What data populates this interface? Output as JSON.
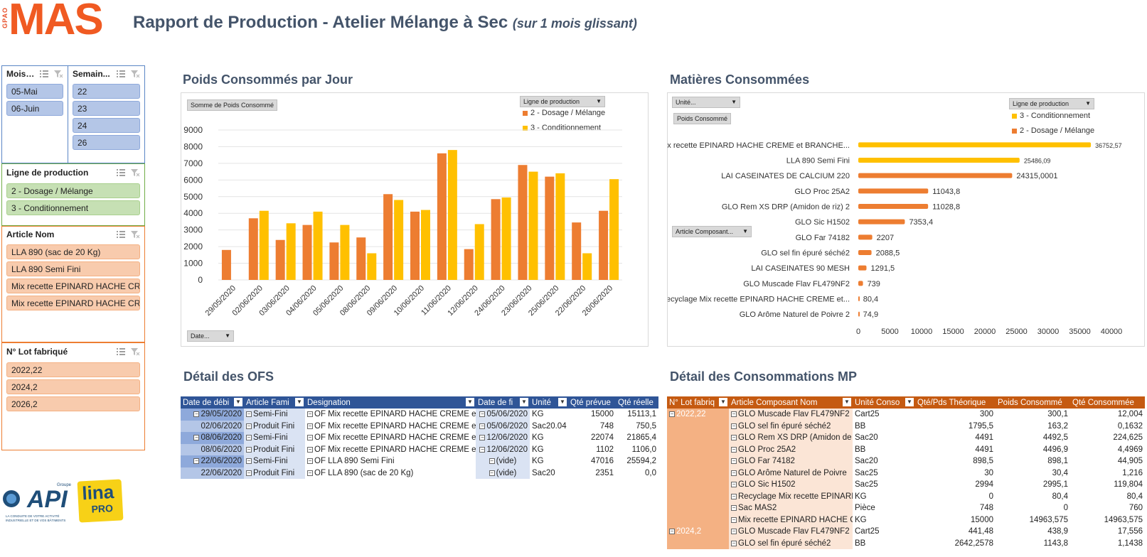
{
  "header": {
    "logo_small": "GPAO",
    "logo": "MAS",
    "title": "Rapport de Production - Atelier Mélange à Sec",
    "subtitle": "(sur 1 mois glissant)"
  },
  "slicers": {
    "mois": {
      "label": "Mois ...",
      "items": [
        "05-Mai",
        "06-Juin"
      ]
    },
    "semaine": {
      "label": "Semain...",
      "items": [
        "22",
        "23",
        "24",
        "26"
      ]
    },
    "ligne": {
      "label": "Ligne de production",
      "items": [
        "2 - Dosage / Mélange",
        "3 - Conditionnement"
      ]
    },
    "article": {
      "label": "Article Nom",
      "items": [
        "LLA 890 (sac de 20 Kg)",
        "LLA 890 Semi Fini",
        "Mix recette EPINARD HACHE CR...",
        "Mix recette EPINARD HACHE CR..."
      ]
    },
    "lot": {
      "label": "N° Lot fabriqué",
      "items": [
        "2022,22",
        "2024,2",
        "2026,2"
      ]
    }
  },
  "chart1": {
    "section_title": "Poids Consommés par Jour",
    "value_pill": "Somme de Poids Consommé",
    "legend_pill": "Ligne de production",
    "axis_pill": "Date...",
    "colors": {
      "s1": "#ed7d31",
      "s2": "#ffc000"
    }
  },
  "chart2": {
    "section_title": "Matières Consommées",
    "unit_pill": "Unité...",
    "value_pill": "Poids Consommé",
    "legend_pill": "Ligne de production",
    "axis_pill": "Article Composant...",
    "colors": {
      "s1": "#ffc000",
      "s2": "#ed7d31"
    }
  },
  "chart_data": [
    {
      "type": "bar",
      "categories": [
        "29/05/2020",
        "02/06/2020",
        "03/06/2020",
        "04/06/2020",
        "05/06/2020",
        "08/06/2020",
        "09/06/2020",
        "10/06/2020",
        "11/06/2020",
        "12/06/2020",
        "24/06/2020",
        "23/06/2020",
        "25/06/2020",
        "22/06/2020",
        "26/06/2020"
      ],
      "series": [
        {
          "name": "2 - Dosage / Mélange",
          "values": [
            1800,
            3700,
            2400,
            3300,
            2250,
            2550,
            5150,
            4100,
            7600,
            1850,
            4850,
            6900,
            6200,
            3450,
            4150
          ]
        },
        {
          "name": "3 - Conditionnement",
          "values": [
            0,
            4150,
            3400,
            4100,
            3300,
            1600,
            4800,
            4200,
            7800,
            3350,
            4950,
            6500,
            6400,
            1600,
            6050
          ]
        }
      ],
      "ylim": [
        0,
        9000
      ],
      "yticks": [
        0,
        1000,
        2000,
        3000,
        4000,
        5000,
        6000,
        7000,
        8000,
        9000
      ]
    },
    {
      "type": "bar",
      "orientation": "horizontal",
      "categories": [
        "Mix recette EPINARD HACHE CREME et BRANCHE...",
        "LLA 890 Semi Fini",
        "LAI CASEINATES DE CALCIUM 220",
        "GLO Proc 25A2",
        "GLO Rem XS DRP (Amidon de riz) 2",
        "GLO Sic H1502",
        "GLO Far 74182",
        "GLO sel fin épuré séché2",
        "LAI CASEINATES 90 MESH",
        "GLO Muscade Flav FL479NF2",
        "Recyclage Mix recette EPINARD HACHE CREME et...",
        "GLO Arôme Naturel de Poivre 2"
      ],
      "series": [
        {
          "name": "3 - Conditionnement",
          "values": [
            36752.57,
            25486.09,
            0,
            0,
            0,
            0,
            0,
            0,
            0,
            0,
            0,
            0
          ]
        },
        {
          "name": "2 - Dosage / Mélange",
          "values": [
            0,
            0,
            24315.0001,
            11043.8,
            11028.8,
            7353.4,
            2207,
            2088.5,
            1291.5,
            739,
            80.4,
            74.9
          ]
        }
      ],
      "labels": [
        "36752,57",
        "25486,09",
        "24315,0001",
        "11043,8",
        "11028,8",
        "7353,4",
        "2207",
        "2088,5",
        "1291,5",
        "739",
        "80,4",
        "74,9"
      ],
      "xlim": [
        0,
        40000
      ],
      "xticks": [
        0,
        5000,
        10000,
        15000,
        20000,
        25000,
        30000,
        35000,
        40000
      ]
    }
  ],
  "ofs": {
    "section_title": "Détail des OFS",
    "headers": [
      "Date de débi",
      "Article Fami",
      "Designation",
      "Date de fi",
      "Unité",
      "Qté prévue",
      "Qté réelle"
    ],
    "rows": [
      [
        "29/05/2020",
        "Semi-Fini",
        "OF Mix recette EPINARD HACHE CREME et B",
        "05/06/2020",
        "KG",
        "15000",
        "15113,1"
      ],
      [
        "02/06/2020",
        "Produit Fini",
        "OF Mix recette EPINARD HACHE CREME et B",
        "05/06/2020",
        "Sac20.04",
        "748",
        "750,5"
      ],
      [
        "08/06/2020",
        "Semi-Fini",
        "OF Mix recette EPINARD HACHE CREME et B",
        "12/06/2020",
        "KG",
        "22074",
        "21865,4"
      ],
      [
        "08/06/2020",
        "Produit Fini",
        "OF Mix recette EPINARD HACHE CREME et B",
        "12/06/2020",
        "KG",
        "1102",
        "1106,0"
      ],
      [
        "22/06/2020",
        "Semi-Fini",
        "OF LLA 890 Semi Fini",
        "(vide)",
        "KG",
        "47016",
        "25594,2"
      ],
      [
        "22/06/2020",
        "Produit Fini",
        "OF LLA 890 (sac de 20 Kg)",
        "(vide)",
        "Sac20",
        "2351",
        "0,0"
      ]
    ]
  },
  "mp": {
    "section_title": "Détail des Consommations MP",
    "headers": [
      "N° Lot fabriq",
      "Article Composant Nom",
      "Unité Conso",
      "Qté/Pds Théorique",
      "Poids Consommé",
      "Qté Consommée"
    ],
    "rows": [
      [
        "2022,22",
        "GLO Muscade Flav FL479NF2",
        "Cart25",
        "300",
        "300,1",
        "12,004"
      ],
      [
        "",
        "GLO sel fin épuré séché2",
        "BB",
        "1795,5",
        "163,2",
        "0,1632"
      ],
      [
        "",
        "GLO Rem XS DRP (Amidon de r",
        "Sac20",
        "4491",
        "4492,5",
        "224,625"
      ],
      [
        "",
        "GLO Proc 25A2",
        "BB",
        "4491",
        "4496,9",
        "4,4969"
      ],
      [
        "",
        "GLO Far 74182",
        "Sac20",
        "898,5",
        "898,1",
        "44,905"
      ],
      [
        "",
        "GLO Arôme Naturel de Poivre",
        "Sac25",
        "30",
        "30,4",
        "1,216"
      ],
      [
        "",
        "GLO Sic H1502",
        "Sac25",
        "2994",
        "2995,1",
        "119,804"
      ],
      [
        "",
        "Recyclage Mix recette EPINARI",
        "KG",
        "0",
        "80,4",
        "80,4"
      ],
      [
        "",
        "Sac MAS2",
        "Pièce",
        "748",
        "0",
        "760"
      ],
      [
        "",
        "Mix recette EPINARD HACHE CI",
        "KG",
        "15000",
        "14963,575",
        "14963,575"
      ],
      [
        "2024,2",
        "GLO Muscade Flav FL479NF2",
        "Cart25",
        "441,48",
        "438,9",
        "17,556"
      ],
      [
        "",
        "GLO sel fin épuré séché2",
        "BB",
        "2642,2578",
        "1143,8",
        "1,1438"
      ]
    ]
  },
  "logos": {
    "api": "API",
    "api_group": "Groupe",
    "api_tagline": "LA CONDUITE DE VOTRE ACTIVITÉ INDUSTRIELLE ET DE VOS BÂTIMENTS",
    "lina": "lina",
    "lina_pro": "PRO"
  }
}
